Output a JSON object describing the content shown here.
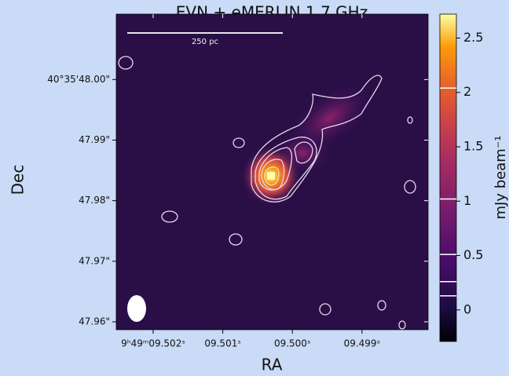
{
  "chart_data": {
    "type": "image",
    "title": "EVN + eMERLIN 1.7 GHz",
    "xlabel": "RA",
    "ylabel": "Dec",
    "xlim": [
      9.50253,
      9.49805
    ],
    "xticks": [
      {
        "value": 9.502,
        "label": "9ʰ49ᵐ09.502ˢ"
      },
      {
        "value": 9.501,
        "label": "09.501ˢ"
      },
      {
        "value": 9.5,
        "label": "09.500ˢ"
      },
      {
        "value": 9.499,
        "label": "09.499ˢ"
      }
    ],
    "ylim": [
      47.9587,
      48.0108
    ],
    "yticks": [
      {
        "value": 48.0,
        "label": "40°35'48.00\""
      },
      {
        "value": 47.99,
        "label": "47.99\""
      },
      {
        "value": 47.98,
        "label": "47.98\""
      },
      {
        "value": 47.97,
        "label": "47.97\""
      },
      {
        "value": 47.96,
        "label": "47.96\""
      }
    ],
    "scale_bar": "250 pc",
    "colorbar": {
      "label": "mJy beam⁻¹",
      "lim": [
        -0.29,
        2.72
      ],
      "ticks": [
        0,
        0.5,
        1,
        1.5,
        2,
        2.5
      ],
      "contour_levels": [
        0.13,
        0.26,
        0.51,
        1.02,
        2.04
      ]
    }
  }
}
